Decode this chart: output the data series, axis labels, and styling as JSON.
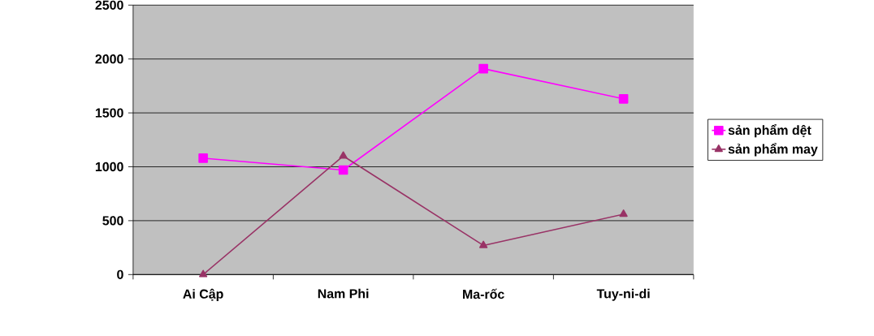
{
  "chart_data": {
    "type": "line",
    "categories": [
      "Ai Cập",
      "Nam Phi",
      "Ma-rốc",
      "Tuy-ni-di"
    ],
    "series": [
      {
        "name": "sản phẩm dệt",
        "color": "#ff00ff",
        "marker": "square",
        "values": [
          1080,
          970,
          1910,
          1630
        ]
      },
      {
        "name": "sản phẩm may",
        "color": "#993366",
        "marker": "triangle",
        "values": [
          0,
          1100,
          270,
          560
        ]
      }
    ],
    "ylim": [
      0,
      2500
    ],
    "yticks": [
      0,
      500,
      1000,
      1500,
      2000,
      2500
    ],
    "grid": "y",
    "legend": "right",
    "line_style": "solid"
  }
}
